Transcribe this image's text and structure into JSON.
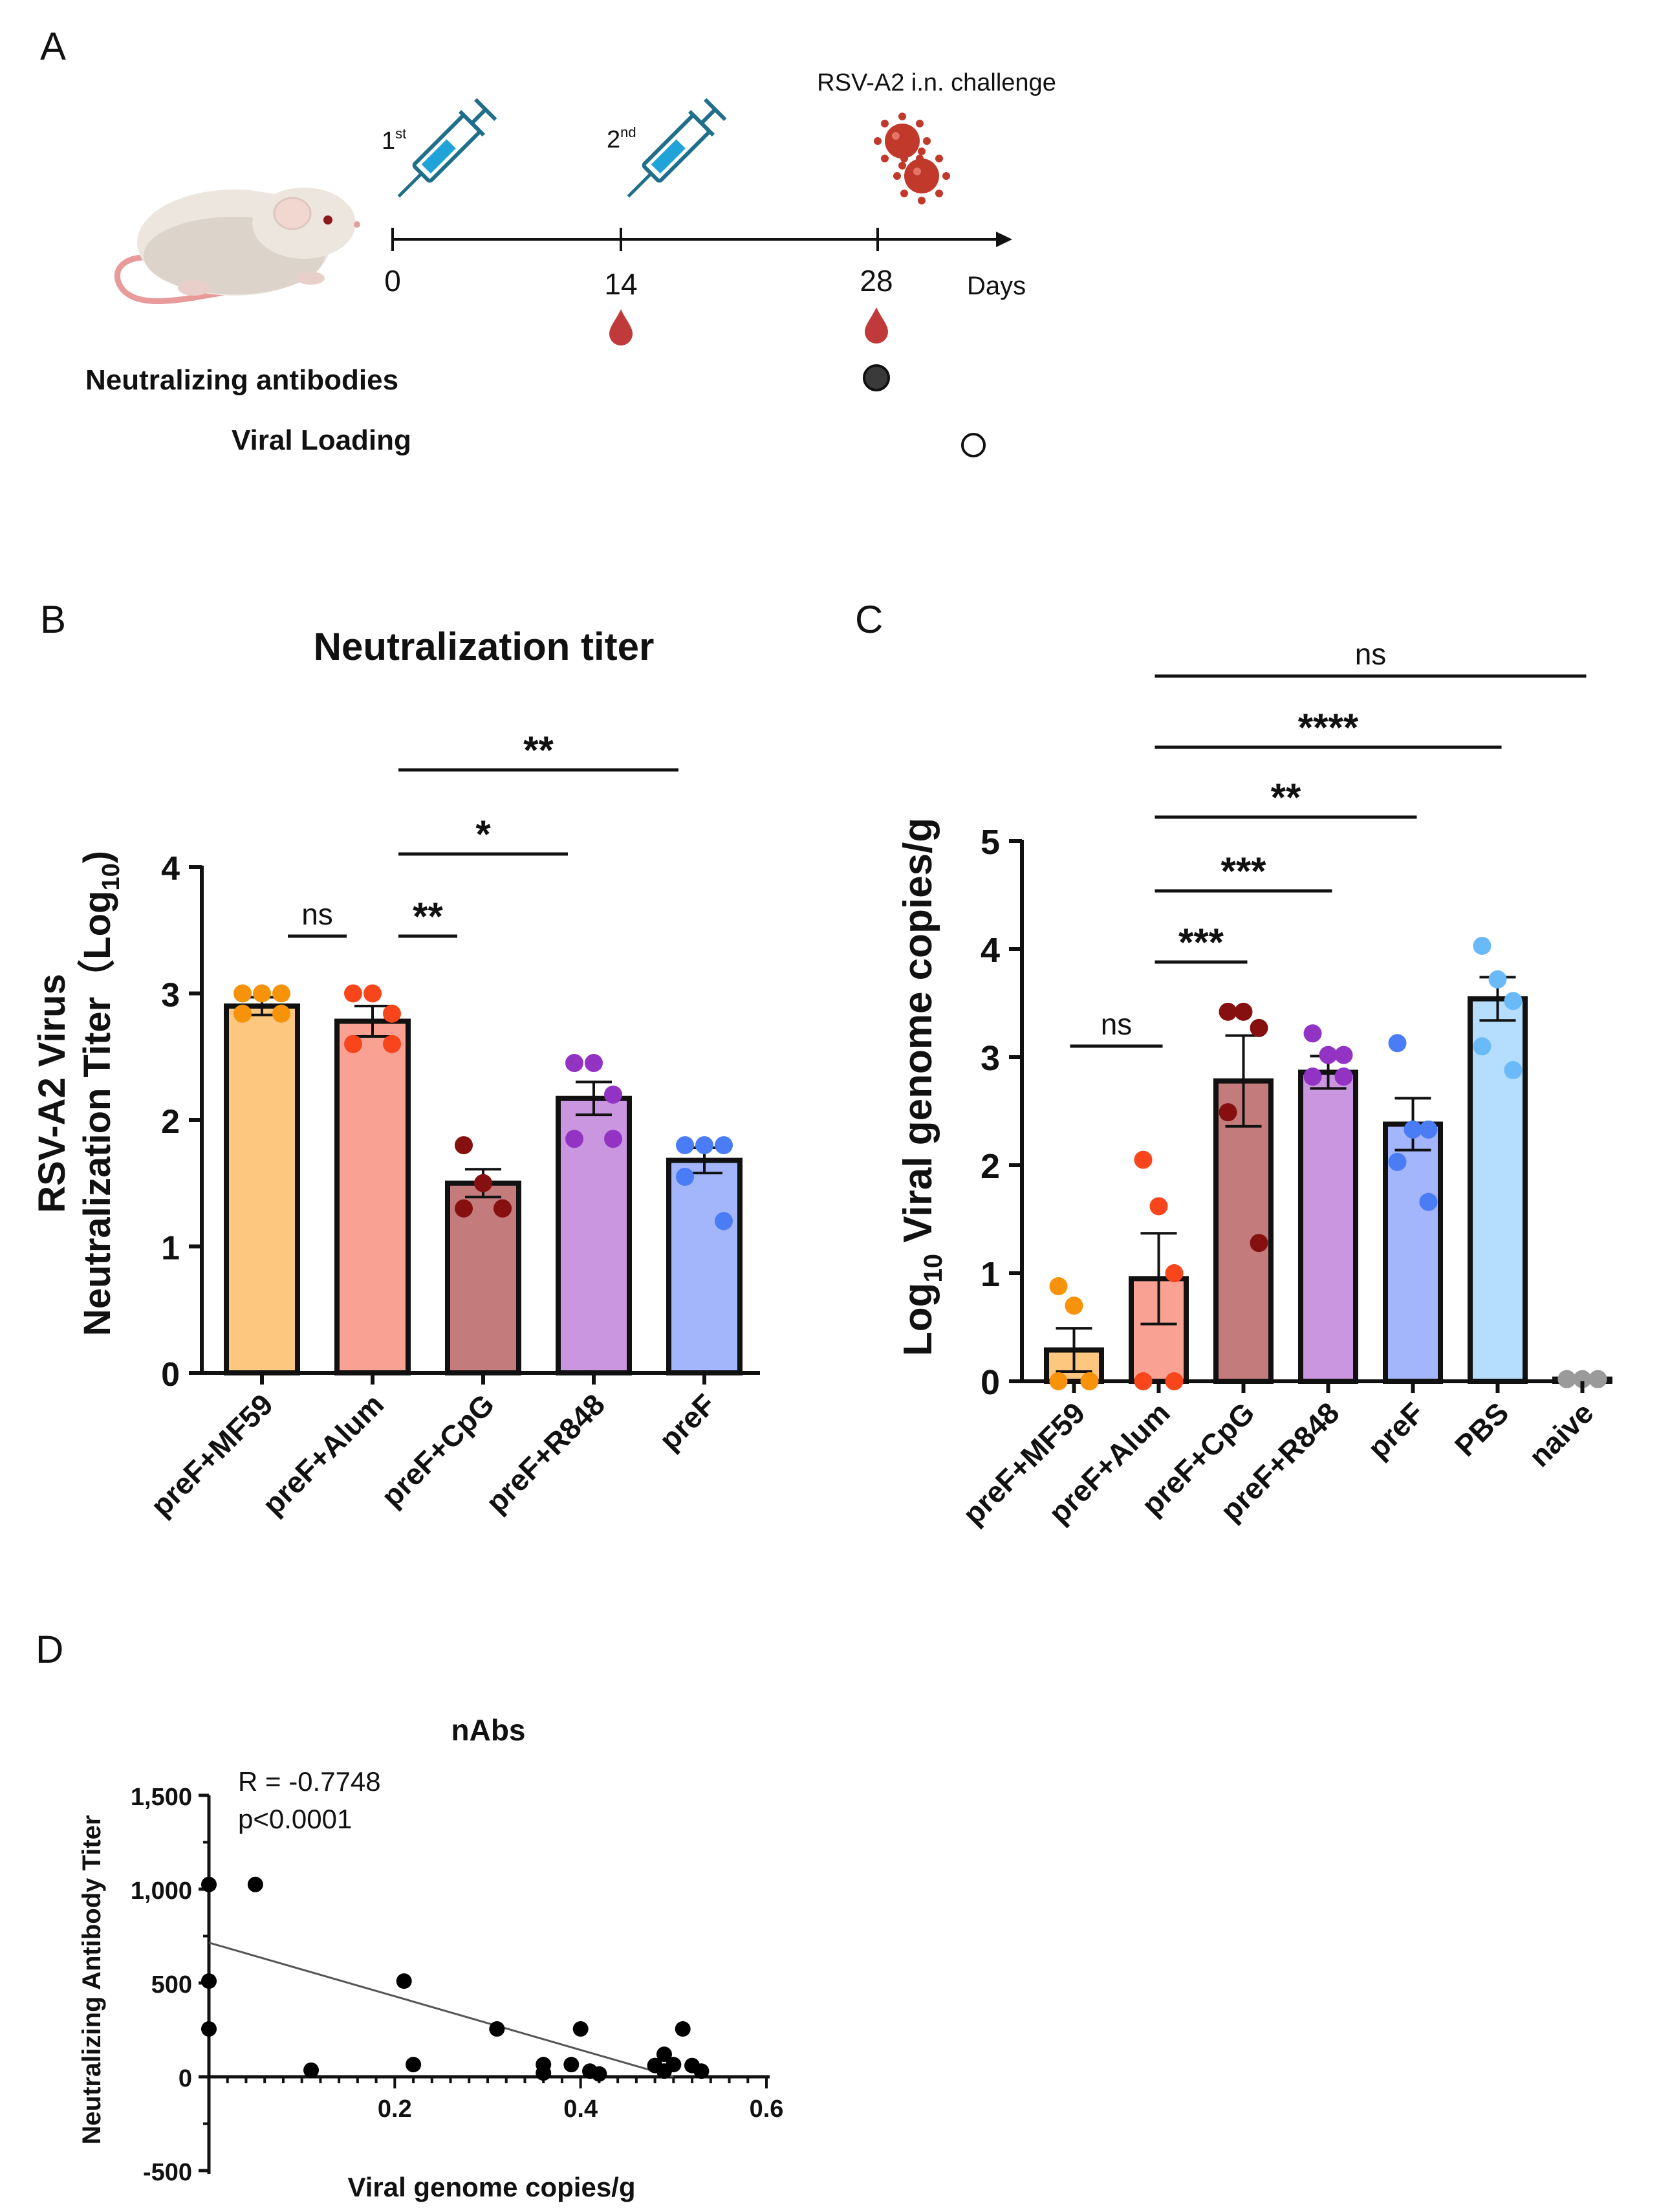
{
  "panelA": {
    "letter": "A",
    "timeline_days": [
      "0",
      "14",
      "28"
    ],
    "days_label": "Days",
    "dose1": "1",
    "dose1_sup": "st",
    "dose2": "2",
    "dose2_sup": "nd",
    "challenge": "RSV-A2 i.n. challenge",
    "legend": [
      {
        "label": "Neutralizing antibodies",
        "marker": "filled-circle"
      },
      {
        "label": "Viral Loading",
        "marker": "open-circle"
      }
    ],
    "icons": [
      "mouse-icon",
      "syringe-icon",
      "syringe-icon",
      "virus-icon",
      "blood-drop-icon",
      "blood-drop-icon"
    ]
  },
  "panelB": {
    "letter": "B",
    "title": "Neutralization titer",
    "ylabel_line1": "RSV-A2 Virus",
    "ylabel_line2": "Neutralization Titer（Log",
    "ylabel_sub": "10",
    "ylabel_close": ")",
    "yticks": [
      "0",
      "1",
      "2",
      "3",
      "4"
    ],
    "significance": [
      {
        "label": "ns",
        "from": 0,
        "to": 1
      },
      {
        "label": "**",
        "from": 1,
        "to": 2
      },
      {
        "label": "*",
        "from": 1,
        "to": 3
      },
      {
        "label": "**",
        "from": 1,
        "to": 4
      }
    ]
  },
  "panelC": {
    "letter": "C",
    "ylabel_pre": "Log",
    "ylabel_sub": "10",
    "ylabel_post": " Viral genome copies/g",
    "yticks": [
      "0",
      "1",
      "2",
      "3",
      "4",
      "5"
    ],
    "significance": [
      {
        "label": "ns",
        "from": 0,
        "to": 1
      },
      {
        "label": "***",
        "from": 1,
        "to": 2
      },
      {
        "label": "***",
        "from": 1,
        "to": 3
      },
      {
        "label": "**",
        "from": 1,
        "to": 4
      },
      {
        "label": "****",
        "from": 1,
        "to": 5
      },
      {
        "label": "ns",
        "from": 1,
        "to": 6
      }
    ]
  },
  "panelD": {
    "letter": "D",
    "title": "nAbs",
    "r_text": "R = -0.7748",
    "p_text": "p<0.0001",
    "xlabel": "Viral genome copies/g",
    "ylabel": "Neutralizing Antibody Titer",
    "xticks": [
      "0.2",
      "0.4",
      "0.6"
    ],
    "yticks": [
      "-500",
      "0",
      "500",
      "1,000",
      "1,500"
    ]
  },
  "chart_data": [
    {
      "type": "bar",
      "panel": "B",
      "title": "Neutralization titer",
      "ylabel": "RSV-A2 Virus Neutralization Titer（Log10)",
      "ylim": [
        0,
        4
      ],
      "categories": [
        "preF+MF59",
        "preF+Alum",
        "preF+CpG",
        "preF+R848",
        "preF"
      ],
      "values": [
        2.9,
        2.78,
        1.5,
        2.17,
        1.68
      ],
      "errors": [
        0.07,
        0.12,
        0.11,
        0.13,
        0.1
      ],
      "colors": [
        "#FDC77F",
        "#F9A294",
        "#C47B7C",
        "#C996DF",
        "#A3B5FB"
      ],
      "point_colors": [
        "#F7920B",
        "#F8451B",
        "#861010",
        "#9333C3",
        "#4A7DF5"
      ],
      "points": [
        [
          3.0,
          3.0,
          3.0,
          2.84,
          2.84
        ],
        [
          3.0,
          3.0,
          2.84,
          2.6,
          2.6
        ],
        [
          1.8,
          1.5,
          1.3,
          1.3,
          1.3
        ],
        [
          2.45,
          2.45,
          2.2,
          1.85,
          1.85
        ],
        [
          1.8,
          1.8,
          1.8,
          1.55,
          1.2
        ]
      ]
    },
    {
      "type": "bar",
      "panel": "C",
      "ylabel": "Log10 Viral genome copies/g",
      "ylim": [
        0,
        5
      ],
      "categories": [
        "preF+MF59",
        "preF+Alum",
        "preF+CpG",
        "preF+R848",
        "preF",
        "PBS",
        "naive"
      ],
      "values": [
        0.29,
        0.95,
        2.78,
        2.86,
        2.38,
        3.54,
        0.02
      ],
      "errors": [
        0.2,
        0.42,
        0.42,
        0.15,
        0.24,
        0.2,
        0.0
      ],
      "colors": [
        "#FDC77F",
        "#F9A294",
        "#C47B7C",
        "#C996DF",
        "#A3B5FB",
        "#B5DDFD",
        "#B5B5B5"
      ],
      "point_colors": [
        "#F7920B",
        "#F8451B",
        "#861010",
        "#9333C3",
        "#4A7DF5",
        "#6ABAF8",
        "#9A9A9A"
      ],
      "points": [
        [
          0.88,
          0.7,
          0.0,
          0.0,
          0.0
        ],
        [
          2.05,
          1.62,
          1.0,
          0.0,
          0.0
        ],
        [
          3.42,
          3.42,
          3.27,
          2.49,
          1.28
        ],
        [
          3.22,
          3.02,
          3.02,
          2.82,
          2.82
        ],
        [
          3.13,
          2.33,
          2.33,
          2.03,
          1.66
        ],
        [
          4.03,
          3.72,
          3.52,
          3.1,
          2.88
        ],
        [
          0.02,
          0.02,
          0.02,
          0.02,
          0.02
        ]
      ]
    },
    {
      "type": "scatter",
      "panel": "D",
      "title": "nAbs",
      "xlabel": "Viral genome copies/g",
      "ylabel": "Neutralizing Antibody Titer",
      "xlim": [
        0,
        0.6
      ],
      "ylim": [
        -500,
        1500
      ],
      "points": [
        [
          0.0,
          1025
        ],
        [
          0.0,
          510
        ],
        [
          0.0,
          255
        ],
        [
          0.05,
          1025
        ],
        [
          0.11,
          35
        ],
        [
          0.21,
          510
        ],
        [
          0.22,
          65
        ],
        [
          0.31,
          255
        ],
        [
          0.36,
          65
        ],
        [
          0.36,
          20
        ],
        [
          0.39,
          65
        ],
        [
          0.4,
          255
        ],
        [
          0.41,
          30
        ],
        [
          0.42,
          15
        ],
        [
          0.48,
          60
        ],
        [
          0.49,
          120
        ],
        [
          0.5,
          65
        ],
        [
          0.51,
          255
        ],
        [
          0.52,
          60
        ],
        [
          0.53,
          30
        ],
        [
          0.49,
          30
        ]
      ],
      "regression": {
        "x": [
          0.0,
          0.5
        ],
        "y": [
          715,
          0
        ]
      },
      "annotations": [
        "R = -0.7748",
        "p<0.0001"
      ]
    }
  ]
}
